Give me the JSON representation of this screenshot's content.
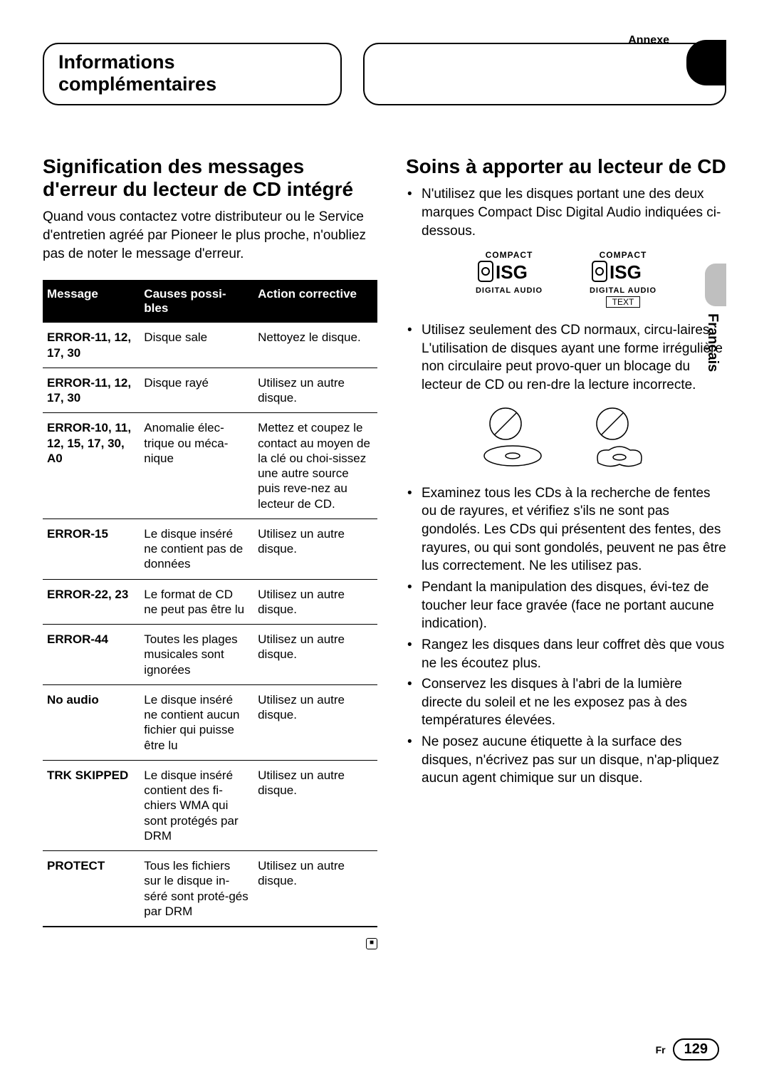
{
  "meta": {
    "annexe_label": "Annexe",
    "language_tab": "Français",
    "footer_lang": "Fr",
    "page_number": "129"
  },
  "headers": {
    "left": "Informations complémentaires",
    "right": ""
  },
  "left_section": {
    "title": "Signification des messages d'erreur du lecteur de CD intégré",
    "intro": "Quand vous contactez votre distributeur ou le Service d'entretien agréé par Pioneer le plus proche, n'oubliez pas de noter le message d'erreur.",
    "table": {
      "columns": [
        "Message",
        "Causes possi-bles",
        "Action corrective"
      ],
      "rows": [
        [
          "ERROR-11, 12, 17, 30",
          "Disque sale",
          "Nettoyez le disque."
        ],
        [
          "ERROR-11, 12, 17, 30",
          "Disque rayé",
          "Utilisez un autre disque."
        ],
        [
          "ERROR-10, 11, 12, 15, 17, 30, A0",
          "Anomalie élec-trique ou méca-nique",
          "Mettez et coupez le contact au moyen de la clé ou choi-sissez une autre source puis reve-nez au lecteur de CD."
        ],
        [
          "ERROR-15",
          "Le disque inséré ne contient pas de données",
          "Utilisez un autre disque."
        ],
        [
          "ERROR-22, 23",
          "Le format de CD ne peut pas être lu",
          "Utilisez un autre disque."
        ],
        [
          "ERROR-44",
          "Toutes les plages musicales sont ignorées",
          "Utilisez un autre disque."
        ],
        [
          "No audio",
          "Le disque inséré ne contient aucun fichier qui puisse être lu",
          "Utilisez un autre disque."
        ],
        [
          "TRK SKIPPED",
          "Le disque inséré contient des fi-chiers WMA qui sont protégés par DRM",
          "Utilisez un autre disque."
        ],
        [
          "PROTECT",
          "Tous les fichiers sur le disque in-séré sont proté-gés par DRM",
          "Utilisez un autre disque."
        ]
      ],
      "col_widths": [
        "29%",
        "34%",
        "37%"
      ]
    }
  },
  "right_section": {
    "title": "Soins à apporter au lecteur de CD",
    "bullets_before_logos": [
      "N'utilisez que les disques portant une des deux marques Compact Disc Digital Audio indiquées ci-dessous."
    ],
    "cd_logos": [
      {
        "compact": "COMPACT",
        "disc": "disc",
        "digital_audio": "DIGITAL AUDIO",
        "has_text": false
      },
      {
        "compact": "COMPACT",
        "disc": "disc",
        "digital_audio": "DIGITAL AUDIO",
        "has_text": true,
        "text_label": "TEXT"
      }
    ],
    "bullets_after_logos": [
      "Utilisez seulement des CD normaux, circu-laires. L'utilisation de disques ayant une forme irrégulière non circulaire peut provo-quer un blocage du lecteur de CD ou ren-dre la lecture incorrecte."
    ],
    "bullets_after_shapes": [
      "Examinez tous les CDs à la recherche de fentes ou de rayures, et vérifiez s'ils ne sont pas gondolés. Les CDs qui présentent des fentes, des rayures, ou qui sont gondolés, peuvent ne pas être lus correctement. Ne les utilisez pas.",
      "Pendant la manipulation des disques, évi-tez de toucher leur face gravée (face ne portant aucune indication).",
      "Rangez les disques dans leur coffret dès que vous ne les écoutez plus.",
      "Conservez les disques à l'abri de la lumière directe du soleil et ne les exposez pas à des températures élevées.",
      "Ne posez aucune étiquette à la surface des disques, n'écrivez pas sur un disque, n'ap-pliquez aucun agent chimique sur un disque."
    ]
  },
  "styling": {
    "page_bg": "#ffffff",
    "text_color": "#000000",
    "table_header_bg": "#000000",
    "table_header_fg": "#ffffff",
    "body_font_size_pt": 14,
    "heading_font_size_pt": 21,
    "heading_weight": 900,
    "side_tab_color": "#bfbfbf"
  }
}
